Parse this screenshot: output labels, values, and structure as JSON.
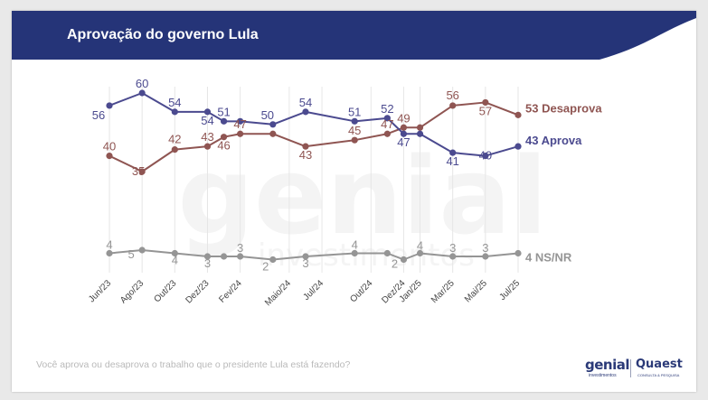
{
  "header": {
    "title": "Aprovação do governo Lula"
  },
  "footnote": "Você aprova ou desaprova o trabalho que o presidente Lula está fazendo?",
  "logos": {
    "genial": "genial",
    "genial_sub": "investimentos",
    "quaest": "Quaest",
    "quaest_sub": "CONSULTA & PESQUISA"
  },
  "watermark": {
    "line1": "genial",
    "line2": "investimentos"
  },
  "colors": {
    "header": "#253478",
    "aprova": "#4b4a8f",
    "desaprova": "#8f5552",
    "nsnr": "#959595",
    "grid": "#e6e6e6",
    "watermark": "#f4f4f4"
  },
  "chart_data": {
    "type": "line",
    "x_tick_labels": [
      "Jun/23",
      "Ago/23",
      "Out/23",
      "Dez/23",
      "Fev/24",
      "Maio/24",
      "Jul/24",
      "Out/24",
      "Dez/24",
      "Jan/25",
      "Mar/25",
      "Mai/25",
      "Jul/25"
    ],
    "x_dates": [
      "2023-06",
      "2023-08",
      "2023-10",
      "2023-12",
      "2024-02",
      "2024-05",
      "2024-07",
      "2024-10",
      "2024-12",
      "2025-01",
      "2025-03",
      "2025-05",
      "2025-07"
    ],
    "point_dates": [
      "2023-06",
      "2023-08",
      "2023-10",
      "2023-12",
      "2024-01",
      "2024-02",
      "2024-04",
      "2024-06",
      "2024-09",
      "2024-11",
      "2024-12",
      "2025-01",
      "2025-03",
      "2025-05",
      "2025-07"
    ],
    "series": [
      {
        "key": "desaprova",
        "end_label": "53 Desaprova",
        "values": [
          40,
          35,
          42,
          43,
          46,
          47,
          47,
          43,
          45,
          47,
          49,
          49,
          56,
          57,
          53
        ],
        "labels": [
          "40",
          "35",
          "42",
          "43",
          "46",
          "47",
          "",
          "43",
          "45",
          "47",
          "49",
          "",
          "56",
          "57",
          ""
        ]
      },
      {
        "key": "aprova",
        "end_label": "43 Aprova",
        "values": [
          56,
          60,
          54,
          54,
          51,
          51,
          50,
          54,
          51,
          52,
          47,
          47,
          41,
          40,
          43
        ],
        "labels": [
          "56",
          "60",
          "54",
          "54",
          "51",
          "",
          "50",
          "54",
          "51",
          "52",
          "47",
          "",
          "41",
          "40",
          ""
        ]
      },
      {
        "key": "nsnr",
        "end_label": "4 NS/NR",
        "values": [
          4,
          5,
          4,
          3,
          3,
          3,
          2,
          3,
          4,
          4,
          2,
          4,
          3,
          3,
          4
        ],
        "labels": [
          "4",
          "5",
          "4",
          "3",
          "",
          "3",
          "2",
          "3",
          "4",
          "",
          "2",
          "4",
          "3",
          "3",
          ""
        ]
      }
    ],
    "grid": "vertical"
  }
}
